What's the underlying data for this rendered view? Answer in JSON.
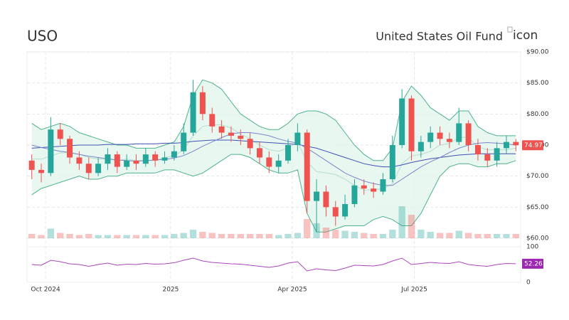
{
  "icon_alt": "icon",
  "chart_data": {
    "type": "candlestick",
    "title": "USO",
    "subtitle": "United States Oil Fund",
    "xticks": [
      {
        "value": 1.45,
        "label": "Oct 2024"
      },
      {
        "value": 14.63,
        "label": "2025"
      },
      {
        "value": 27.44,
        "label": "Apr 2025"
      },
      {
        "value": 40.3,
        "label": "Jul 2025"
      }
    ],
    "ylim": [
      60,
      90
    ],
    "yticks": [
      {
        "value": 60,
        "label": "$60.00"
      },
      {
        "value": 65,
        "label": "$65.00"
      },
      {
        "value": 70,
        "label": "$70.00"
      },
      {
        "value": 75,
        "label": "$75.00"
      },
      {
        "value": 80,
        "label": "$80.00"
      },
      {
        "value": 85,
        "label": "$85.00"
      },
      {
        "value": 90,
        "label": "$90.00"
      }
    ],
    "grid": true,
    "up_color": "#26a69a",
    "down_color": "#ef5350",
    "open": [
      72.5,
      71.0,
      70.5,
      77.5,
      76.0,
      73.0,
      72.0,
      70.5,
      72.0,
      73.5,
      71.5,
      72.5,
      72.0,
      73.5,
      72.5,
      73.0,
      74.0,
      77.0,
      83.5,
      80.0,
      78.0,
      77.0,
      76.5,
      76.0,
      74.5,
      73.0,
      71.5,
      72.5,
      75.0,
      77.0,
      66.0,
      67.5,
      65.0,
      63.5,
      65.5,
      68.5,
      68.0,
      67.5,
      69.5,
      75.0,
      82.5,
      74.0,
      75.5,
      77.0,
      76.0,
      75.5,
      78.5,
      75.0,
      73.5,
      72.5,
      74.5,
      75.5
    ],
    "high": [
      73.5,
      72.0,
      79.5,
      78.5,
      76.5,
      74.0,
      73.0,
      73.0,
      74.5,
      74.0,
      73.5,
      73.5,
      74.5,
      74.0,
      74.0,
      75.0,
      78.5,
      85.5,
      84.5,
      81.0,
      79.0,
      78.0,
      77.5,
      77.0,
      75.5,
      74.0,
      73.5,
      76.0,
      78.5,
      77.5,
      69.5,
      68.5,
      66.0,
      67.0,
      69.5,
      69.5,
      69.0,
      70.5,
      76.5,
      84.0,
      83.0,
      76.5,
      78.0,
      78.0,
      77.0,
      81.0,
      79.0,
      76.0,
      74.5,
      75.5,
      76.5,
      76.0
    ],
    "low": [
      69.5,
      69.0,
      70.0,
      75.0,
      72.0,
      71.0,
      69.5,
      70.0,
      71.0,
      70.5,
      71.0,
      71.0,
      71.5,
      71.5,
      72.0,
      72.5,
      73.5,
      76.5,
      79.0,
      77.0,
      76.0,
      75.5,
      75.0,
      73.5,
      72.0,
      70.5,
      70.5,
      72.0,
      74.0,
      64.0,
      61.0,
      63.5,
      62.0,
      63.0,
      65.0,
      67.0,
      66.5,
      67.0,
      69.0,
      74.5,
      72.5,
      73.0,
      74.5,
      75.0,
      74.5,
      75.0,
      74.0,
      72.5,
      71.5,
      71.5,
      73.5,
      74.0
    ],
    "close": [
      71.0,
      70.5,
      77.5,
      76.0,
      73.0,
      72.0,
      70.5,
      72.0,
      73.5,
      71.5,
      72.5,
      72.0,
      73.5,
      72.5,
      73.0,
      74.0,
      77.0,
      83.5,
      80.0,
      78.0,
      77.0,
      76.5,
      76.0,
      74.5,
      73.0,
      71.5,
      72.5,
      75.0,
      77.0,
      66.0,
      67.5,
      65.0,
      63.5,
      65.5,
      68.5,
      68.0,
      67.5,
      69.5,
      75.0,
      82.5,
      74.0,
      75.5,
      77.0,
      76.0,
      75.5,
      78.5,
      75.0,
      73.5,
      72.5,
      74.5,
      75.5,
      74.97
    ],
    "bollinger": {
      "color": "#4db38a",
      "fill": "#e3f5ee",
      "upper": [
        78.5,
        77.5,
        78.0,
        78.5,
        78.0,
        77.0,
        76.5,
        76.0,
        75.5,
        75.0,
        75.0,
        74.5,
        74.5,
        74.5,
        75.0,
        75.5,
        78.0,
        83.0,
        85.5,
        85.0,
        84.0,
        82.0,
        80.0,
        79.0,
        78.0,
        77.5,
        77.5,
        78.5,
        80.0,
        80.5,
        80.5,
        80.0,
        79.0,
        77.0,
        75.0,
        73.5,
        72.5,
        72.5,
        74.5,
        82.0,
        84.5,
        83.0,
        81.0,
        80.0,
        79.0,
        80.5,
        80.5,
        78.0,
        77.0,
        76.5,
        76.5,
        76.5
      ],
      "middle": [
        72.75,
        72.75,
        73.25,
        73.75,
        73.75,
        73.5,
        73.0,
        72.75,
        72.75,
        72.5,
        72.75,
        72.5,
        72.5,
        72.5,
        73.0,
        73.25,
        74.25,
        76.5,
        78.0,
        78.25,
        78.25,
        77.75,
        76.75,
        76.0,
        75.0,
        74.25,
        74.0,
        74.5,
        75.5,
        72.25,
        70.75,
        70.5,
        70.25,
        69.5,
        68.5,
        67.75,
        67.75,
        68.0,
        68.75,
        72.0,
        73.25,
        73.5,
        74.0,
        75.0,
        75.25,
        76.25,
        76.25,
        74.75,
        74.25,
        74.25,
        74.25,
        74.5
      ],
      "lower": [
        67.0,
        68.0,
        68.5,
        69.0,
        69.5,
        70.0,
        69.5,
        69.5,
        70.0,
        70.0,
        70.5,
        70.5,
        70.5,
        70.5,
        71.0,
        71.0,
        70.5,
        70.0,
        70.5,
        71.5,
        72.5,
        73.5,
        73.5,
        73.0,
        72.0,
        71.0,
        70.5,
        70.5,
        71.0,
        64.0,
        61.0,
        61.0,
        61.5,
        62.0,
        62.0,
        62.0,
        63.0,
        63.5,
        63.0,
        62.0,
        62.0,
        64.0,
        67.0,
        70.0,
        71.5,
        72.0,
        72.0,
        71.5,
        71.5,
        72.0,
        72.0,
        72.5
      ]
    },
    "moving_averages": [
      {
        "color": "#3f51b5",
        "values": [
          74.5,
          74.6,
          74.7,
          74.8,
          74.9,
          75.0,
          75.0,
          75.0,
          75.1,
          75.1,
          75.1,
          75.2,
          75.2,
          75.2,
          75.3,
          75.3,
          75.4,
          75.6,
          75.7,
          75.8,
          75.8,
          75.8,
          75.7,
          75.6,
          75.5,
          75.4,
          75.3,
          75.2,
          75.1,
          74.8,
          74.5,
          74.0,
          73.5,
          73.0,
          72.5,
          72.0,
          71.7,
          71.5,
          71.5,
          71.8,
          72.2,
          72.5,
          72.8,
          73.0,
          73.2,
          73.4,
          73.5,
          73.6,
          73.6,
          73.6,
          73.6,
          73.6
        ]
      },
      {
        "color": "#7986cb",
        "values": [
          75.0,
          74.6,
          74.3,
          74.0,
          73.8,
          73.5,
          73.2,
          73.0,
          72.8,
          72.6,
          72.5,
          72.4,
          72.5,
          72.6,
          72.7,
          72.9,
          73.3,
          74.0,
          74.8,
          75.5,
          76.2,
          76.8,
          77.0,
          77.0,
          76.8,
          76.5,
          76.0,
          75.6,
          75.3,
          74.5,
          73.5,
          72.5,
          71.5,
          70.5,
          69.8,
          69.2,
          68.8,
          68.5,
          68.5,
          69.5,
          70.5,
          71.5,
          72.3,
          73.0,
          73.8,
          74.5,
          75.0,
          75.3,
          75.4,
          75.3,
          75.2,
          75.0
        ]
      }
    ],
    "volume": {
      "ylim": [
        0,
        40
      ],
      "values": [
        4,
        3,
        9,
        5,
        4,
        3,
        4,
        3,
        3,
        3,
        3,
        3,
        3,
        3,
        3,
        4,
        5,
        8,
        6,
        5,
        4,
        4,
        4,
        4,
        4,
        4,
        3,
        4,
        5,
        18,
        14,
        10,
        8,
        7,
        6,
        5,
        4,
        4,
        8,
        30,
        22,
        8,
        6,
        5,
        5,
        7,
        5,
        4,
        4,
        4,
        4,
        4
      ]
    },
    "rsi": {
      "color": "#ab47bc",
      "ylim": [
        0,
        100
      ],
      "yticks": [
        0,
        100
      ],
      "values": [
        50,
        48,
        62,
        58,
        52,
        50,
        45,
        50,
        54,
        48,
        51,
        50,
        53,
        51,
        52,
        55,
        62,
        68,
        60,
        56,
        54,
        52,
        51,
        48,
        45,
        42,
        46,
        54,
        58,
        32,
        38,
        35,
        33,
        40,
        48,
        47,
        46,
        50,
        60,
        68,
        50,
        53,
        56,
        54,
        53,
        58,
        50,
        47,
        45,
        50,
        53,
        52.26
      ]
    }
  }
}
